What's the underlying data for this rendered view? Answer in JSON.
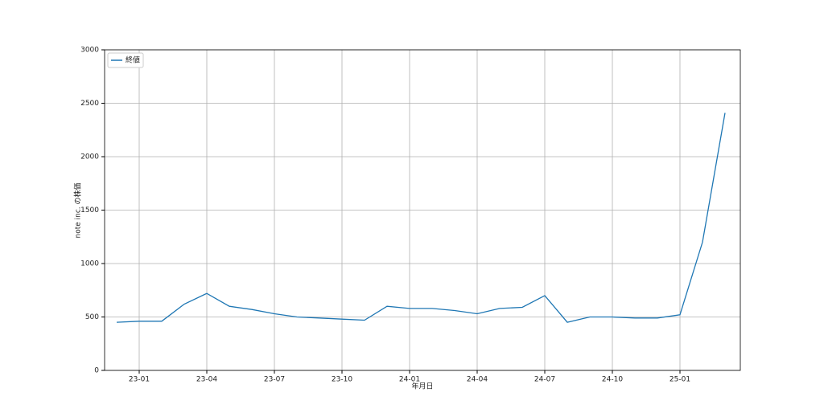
{
  "chart_data": {
    "type": "line",
    "x_label": "年月日",
    "y_label": "note inc. の株価",
    "x": [
      "22-12",
      "23-01",
      "23-02",
      "23-03",
      "23-04",
      "23-05",
      "23-06",
      "23-07",
      "23-08",
      "23-09",
      "23-10",
      "23-11",
      "23-12",
      "24-01",
      "24-02",
      "24-03",
      "24-04",
      "24-05",
      "24-06",
      "24-07",
      "24-08",
      "24-09",
      "24-10",
      "24-11",
      "24-12",
      "25-01",
      "25-02",
      "25-03"
    ],
    "xticks": [
      "23-01",
      "23-04",
      "23-07",
      "23-10",
      "24-01",
      "24-04",
      "24-07",
      "24-10",
      "25-01"
    ],
    "series": [
      {
        "name": "終値",
        "color": "#1f77b4",
        "values": [
          450,
          460,
          460,
          620,
          720,
          600,
          570,
          530,
          500,
          490,
          480,
          470,
          600,
          580,
          580,
          560,
          530,
          580,
          590,
          700,
          450,
          500,
          500,
          490,
          490,
          520,
          1200,
          2410
        ]
      }
    ],
    "ylim": [
      0,
      3000
    ],
    "yticks": [
      0,
      500,
      1000,
      1500,
      2000,
      2500,
      3000
    ],
    "grid": true,
    "legend": "upper-left"
  }
}
